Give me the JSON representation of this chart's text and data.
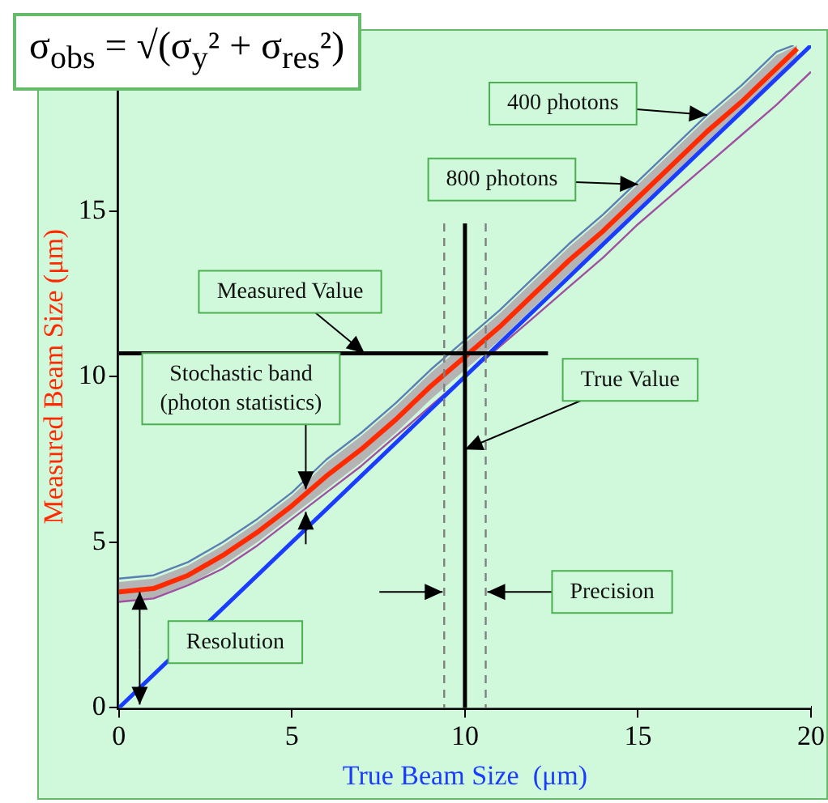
{
  "chart_data": {
    "type": "line",
    "xlabel": "True Beam Size  (μm)",
    "ylabel": "Measured Beam Size (μm)",
    "xlim": [
      0,
      20
    ],
    "xticks": [
      0,
      5,
      10,
      15,
      20
    ],
    "ylim": [
      0,
      20
    ],
    "yticks": [
      0,
      5,
      10,
      15,
      {
        "value": 20,
        "label": null
      }
    ],
    "grid": false,
    "legend": false,
    "marker": "none",
    "series": [
      {
        "color": "#5b7fb0",
        "x": [
          0,
          1,
          2,
          3,
          4,
          5,
          6,
          7,
          8,
          9,
          10,
          11,
          12,
          13,
          14,
          15,
          16,
          17,
          18,
          19,
          19.5
        ],
        "values": [
          3.9,
          4.0,
          4.4,
          5.0,
          5.7,
          6.5,
          7.5,
          8.3,
          9.2,
          10.2,
          11.1,
          12.0,
          13.0,
          14.0,
          14.9,
          15.9,
          16.9,
          17.9,
          18.8,
          19.8,
          20.0
        ]
      },
      {
        "color": "#ff2a00",
        "x": [
          0,
          1,
          2,
          3,
          4,
          5,
          6,
          7,
          8,
          9,
          10,
          11,
          12,
          13,
          14,
          15,
          16,
          17,
          18,
          19,
          19.6
        ],
        "values": [
          3.5,
          3.6,
          4.0,
          4.6,
          5.3,
          6.1,
          7.0,
          7.8,
          8.7,
          9.7,
          10.6,
          11.5,
          12.5,
          13.5,
          14.4,
          15.4,
          16.4,
          17.4,
          18.3,
          19.3,
          19.9
        ],
        "lower": [
          3.2,
          3.3,
          3.7,
          4.3,
          5.0,
          5.8,
          6.6,
          7.4,
          8.3,
          9.3,
          10.2,
          11.1,
          12.1,
          13.1,
          14.0,
          15.0,
          16.0,
          17.0,
          17.9,
          18.9,
          19.5
        ],
        "upper": [
          3.8,
          3.9,
          4.3,
          4.9,
          5.6,
          6.4,
          7.4,
          8.2,
          9.1,
          10.1,
          11.0,
          11.9,
          12.9,
          13.9,
          14.8,
          15.8,
          16.8,
          17.8,
          18.7,
          19.7,
          20.0
        ]
      },
      {
        "color": "#1a3cff",
        "x": [
          0,
          20
        ],
        "values": [
          0,
          20
        ]
      },
      {
        "color": "#a050a0",
        "x": [
          0,
          1,
          2,
          3,
          4,
          5,
          6,
          7,
          8,
          9,
          10,
          11,
          12,
          13,
          14,
          15,
          16,
          17,
          18,
          19,
          20
        ],
        "values": [
          3.2,
          3.3,
          3.7,
          4.2,
          4.9,
          5.7,
          6.5,
          7.3,
          8.2,
          9.1,
          10.0,
          10.9,
          11.8,
          12.7,
          13.6,
          14.6,
          15.5,
          16.4,
          17.3,
          18.2,
          19.2
        ]
      }
    ],
    "ref_lines": [
      {
        "axis": "x",
        "value": 10,
        "color": "#000000"
      },
      {
        "axis": "y",
        "value": 10.7,
        "color": "#000000"
      },
      {
        "axis": "x",
        "value": 9.4,
        "color": "#808080",
        "line_style": "dashed"
      },
      {
        "axis": "x",
        "value": 10.6,
        "color": "#808080",
        "line_style": "dashed"
      }
    ],
    "annotations": [
      "σ$_{obs}$ = √(σ$_{y}$² + σ$_{res}$²)",
      {
        "text": "400 photons",
        "x": 17,
        "y": 17.9
      },
      {
        "text": "800 photons",
        "x": 15,
        "y": 15.8
      },
      {
        "text": "Measured Value",
        "x": 7.1,
        "y": 10.7
      },
      {
        "text": "Stochastic band\n(photon statistics)",
        "x": 5.4,
        "y": 6.6
      },
      {
        "text": "Resolution",
        "x": 0.6,
        "y": 3.5
      },
      {
        "text": "Precision",
        "x": 10.6,
        "y": 3.5
      },
      {
        "text": "True Value",
        "x": 10,
        "y": 7.8
      }
    ]
  }
}
